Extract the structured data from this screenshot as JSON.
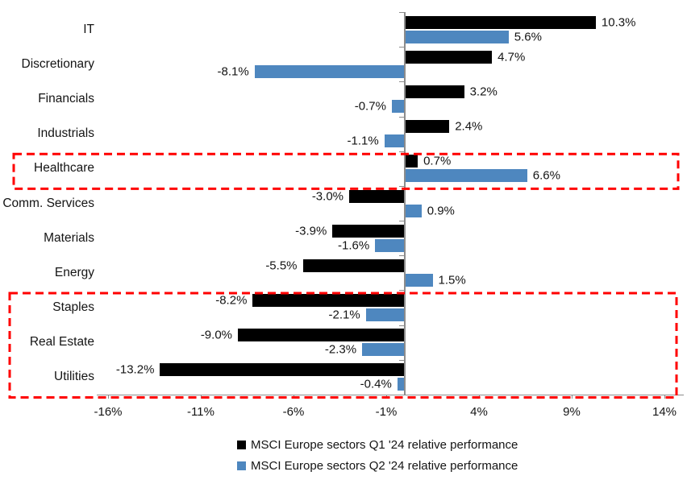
{
  "chart_data": {
    "type": "bar",
    "orientation": "horizontal",
    "title": "",
    "categories": [
      "IT",
      "Discretionary",
      "Financials",
      "Industrials",
      "Healthcare",
      "Comm. Services",
      "Materials",
      "Energy",
      "Staples",
      "Real Estate",
      "Utilities"
    ],
    "series": [
      {
        "name": "MSCI Europe sectors Q1 '24 relative performance",
        "color": "#000000",
        "values": [
          10.3,
          4.7,
          3.2,
          2.4,
          0.7,
          -3.0,
          -3.9,
          -5.5,
          -8.2,
          -9.0,
          -13.2
        ],
        "labels": [
          "10.3%",
          "4.7%",
          "3.2%",
          "2.4%",
          "0.7%",
          "-3.0%",
          "-3.9%",
          "-5.5%",
          "-8.2%",
          "-9.0%",
          "-13.2%"
        ]
      },
      {
        "name": "MSCI Europe sectors Q2 '24 relative performance",
        "color": "#4E87BF",
        "values": [
          5.6,
          -8.1,
          -0.7,
          -1.1,
          6.6,
          0.9,
          -1.6,
          1.5,
          -2.1,
          -2.3,
          -0.4
        ],
        "labels": [
          "5.6%",
          "-8.1%",
          "-0.7%",
          "-1.1%",
          "6.6%",
          "0.9%",
          "-1.6%",
          "1.5%",
          "-2.1%",
          "-2.3%",
          "-0.4%"
        ]
      }
    ],
    "x_axis": {
      "tick_labels": [
        "-16%",
        "-11%",
        "-6%",
        "-1%",
        "4%",
        "9%",
        "14%"
      ],
      "tick_values": [
        -16,
        -11,
        -6,
        -1,
        4,
        9,
        14
      ],
      "range": [
        -16,
        14
      ],
      "grid": false
    },
    "legend_position": "bottom",
    "highlights": [
      {
        "categories": [
          "Healthcare"
        ],
        "color": "#FF0000",
        "style": "dashed"
      },
      {
        "categories": [
          "Staples",
          "Real Estate",
          "Utilities"
        ],
        "color": "#FF0000",
        "style": "dashed"
      }
    ]
  }
}
